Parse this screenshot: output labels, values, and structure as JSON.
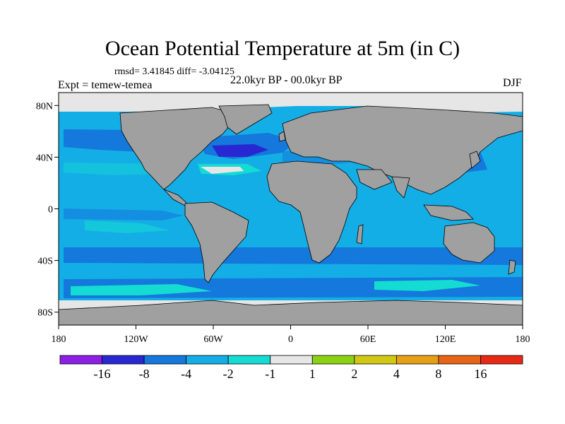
{
  "title": "Ocean Potential Temperature at 5m (in C)",
  "stats": "rmsd= 3.41845 diff= -3.04125",
  "expt": "Expt = temew-temea",
  "period": "22.0kyr BP - 00.0kyr BP",
  "season": "DJF",
  "map": {
    "lat_range": [
      -90,
      90
    ],
    "lon_range": [
      -180,
      180
    ],
    "land_color": "#a0a0a0",
    "sea_ice_color": "#e6e6e6",
    "background_field_color": "#14aee6"
  },
  "axes": {
    "lat_ticks": [
      {
        "value": 80,
        "label": "80N"
      },
      {
        "value": 40,
        "label": "40N"
      },
      {
        "value": 0,
        "label": "0"
      },
      {
        "value": -40,
        "label": "40S"
      },
      {
        "value": -80,
        "label": "80S"
      }
    ],
    "lon_ticks": [
      {
        "value": -180,
        "label": "180"
      },
      {
        "value": -120,
        "label": "120W"
      },
      {
        "value": -60,
        "label": "60W"
      },
      {
        "value": 0,
        "label": "0"
      },
      {
        "value": 60,
        "label": "60E"
      },
      {
        "value": 120,
        "label": "120E"
      },
      {
        "value": 180,
        "label": "180"
      }
    ]
  },
  "colorbar": {
    "colors": [
      "#8c1ee6",
      "#2828d2",
      "#1478dc",
      "#14aee6",
      "#14dcd2",
      "#e6e6e6",
      "#8cd214",
      "#d2c814",
      "#e6a014",
      "#e66414",
      "#e62814"
    ],
    "labels": [
      "-16",
      "-8",
      "-4",
      "-2",
      "-1",
      "1",
      "2",
      "4",
      "8",
      "16"
    ]
  }
}
